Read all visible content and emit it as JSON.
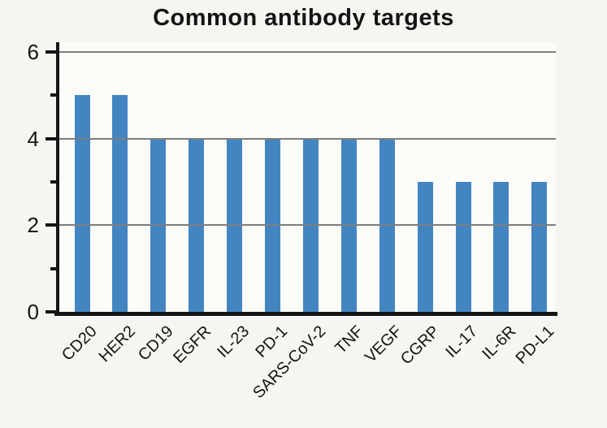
{
  "chart_data": {
    "type": "bar",
    "title": "Common antibody targets",
    "categories": [
      "CD20",
      "HER2",
      "CD19",
      "EGFR",
      "IL-23",
      "PD-1",
      "SARS-CoV-2",
      "TNF",
      "VEGF",
      "CGRP",
      "IL-17",
      "IL-6R",
      "PD-L1"
    ],
    "values": [
      5,
      5,
      4,
      4,
      4,
      4,
      4,
      4,
      4,
      3,
      3,
      3,
      3
    ],
    "xlabel": "",
    "ylabel": "",
    "ylim": [
      0,
      6
    ],
    "yticks": [
      0,
      2,
      4,
      6
    ],
    "minor_yticks": [
      1,
      3,
      5
    ],
    "gridline_values": [
      2,
      4,
      6
    ],
    "grid": "horizontal",
    "legend_position": "none",
    "x_label_rotation_deg": 45,
    "colors": {
      "bar": "#4385c1",
      "background": "#f6f5f1",
      "plot_background": "#fbfbf8",
      "gridline": "#7d7d7d",
      "axis": "#141414",
      "text": "#141414"
    }
  }
}
